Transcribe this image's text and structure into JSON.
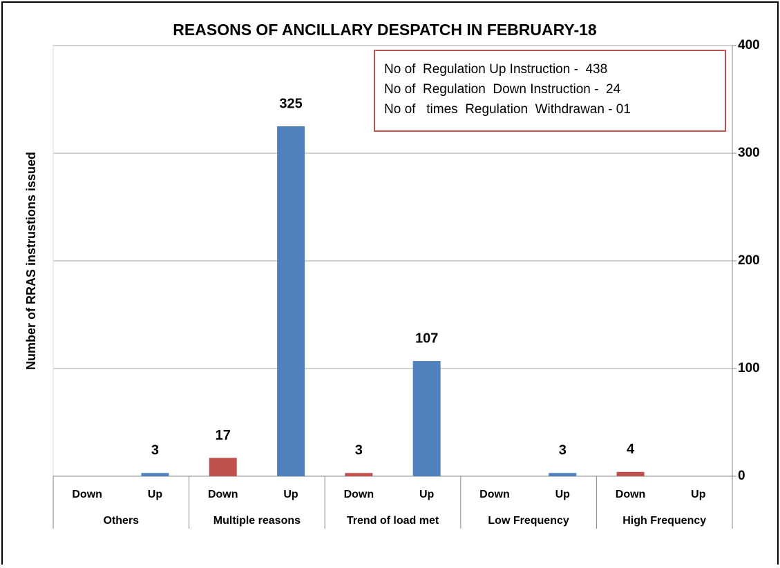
{
  "chart_data": {
    "type": "bar",
    "title": "REASONS OF ANCILLARY DESPATCH IN  FEBRUARY-18",
    "y_label": "Number of RRAS instrustions issued",
    "categories": [
      "Others",
      "Multiple reasons",
      "Trend of load met",
      "Low Frequency",
      "High Frequency"
    ],
    "series": [
      {
        "name": "Down",
        "color": "#c0504d",
        "values": [
          null,
          17,
          3,
          null,
          4
        ]
      },
      {
        "name": "Up",
        "color": "#4f81bd",
        "values": [
          3,
          325,
          107,
          3,
          null
        ]
      }
    ],
    "ylim": [
      0,
      400
    ],
    "yticks": [
      0,
      100,
      200,
      300,
      400
    ],
    "y_axis_side": "right",
    "grid": true,
    "annotations": [
      "No of  Regulation Up Instruction -  438",
      "No of  Regulation  Down Instruction -  24",
      "No of   times  Regulation  Withdrawan - 01"
    ]
  }
}
